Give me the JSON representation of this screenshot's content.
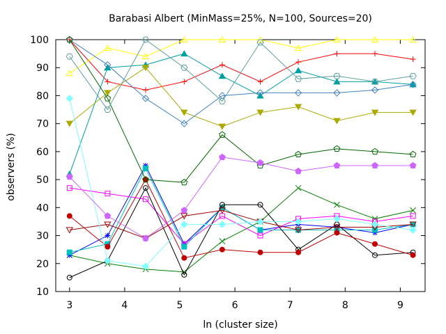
{
  "chart_data": {
    "type": "line",
    "title": "Barabasi Albert (MinMass=25%, N=100, Sources=20)",
    "xlabel": "ln (cluster size)",
    "ylabel": "observers (%)",
    "xlim": [
      2.75,
      9.45
    ],
    "ylim": [
      10,
      100
    ],
    "xticks": [
      3,
      4,
      5,
      6,
      7,
      8,
      9
    ],
    "yticks": [
      10,
      20,
      30,
      40,
      50,
      60,
      70,
      80,
      90,
      100
    ],
    "grid": false,
    "x": [
      3.0,
      3.69,
      4.38,
      5.08,
      5.77,
      6.46,
      7.15,
      7.85,
      8.54,
      9.23
    ],
    "series": [
      {
        "color": "#ff0000",
        "marker": "plus",
        "values": [
          100,
          85,
          82,
          85,
          91,
          85,
          92,
          95,
          95,
          93
        ]
      },
      {
        "color": "#008000",
        "marker": "cross",
        "values": [
          23,
          20,
          18,
          17,
          28,
          35,
          47,
          41,
          36,
          39
        ]
      },
      {
        "color": "#0000ff",
        "marker": "asterisk",
        "values": [
          23,
          30,
          55,
          27,
          40,
          32,
          34,
          33,
          31,
          34
        ]
      },
      {
        "color": "#ff00ff",
        "marker": "square-open",
        "values": [
          47,
          45,
          43,
          27,
          37,
          30,
          36,
          37,
          35,
          37
        ]
      },
      {
        "color": "#00c0c0",
        "marker": "square-filled",
        "values": [
          24,
          27,
          54,
          26,
          40,
          32,
          32,
          32,
          32,
          34
        ]
      },
      {
        "color": "#000000",
        "marker": "circle-open",
        "values": [
          15,
          21,
          47,
          16,
          41,
          41,
          25,
          34,
          23,
          24
        ]
      },
      {
        "color": "#c00000",
        "marker": "circle-filled",
        "values": [
          37,
          26,
          50,
          22,
          25,
          24,
          24,
          31,
          27,
          23
        ]
      },
      {
        "color": "#ffff00",
        "marker": "triangle-open",
        "values": [
          88,
          97,
          94,
          100,
          100,
          100,
          97,
          100,
          100,
          100
        ]
      },
      {
        "color": "#00a0a0",
        "marker": "triangle-filled",
        "values": [
          52,
          90,
          91,
          95,
          87,
          80,
          89,
          85,
          85,
          84
        ]
      },
      {
        "color": "#a00000",
        "marker": "triangle-down-open",
        "values": [
          32,
          34,
          29,
          37,
          39,
          35,
          32,
          33,
          33,
          34
        ]
      },
      {
        "color": "#aaaa00",
        "marker": "triangle-down-filled",
        "values": [
          70,
          81,
          90,
          74,
          69,
          74,
          76,
          71,
          74,
          74
        ]
      },
      {
        "color": "#4080c0",
        "marker": "diamond-open",
        "values": [
          100,
          91,
          79,
          70,
          80,
          81,
          81,
          81,
          82,
          84
        ]
      },
      {
        "color": "#80ffff",
        "marker": "diamond-filled",
        "values": [
          79,
          21,
          19,
          34,
          34,
          35,
          35,
          36,
          34,
          32
        ]
      },
      {
        "color": "#006400",
        "marker": "pentagon-open",
        "values": [
          100,
          79,
          50,
          49,
          66,
          55,
          59,
          61,
          60,
          59
        ]
      },
      {
        "color": "#cc66ff",
        "marker": "pentagon-filled",
        "values": [
          51,
          37,
          29,
          39,
          58,
          56,
          53,
          55,
          55,
          55
        ]
      },
      {
        "color": "#5f9ea0",
        "marker": "hexagon-open",
        "values": [
          94,
          75,
          100,
          90,
          78,
          99,
          86,
          87,
          85,
          87
        ]
      }
    ]
  }
}
